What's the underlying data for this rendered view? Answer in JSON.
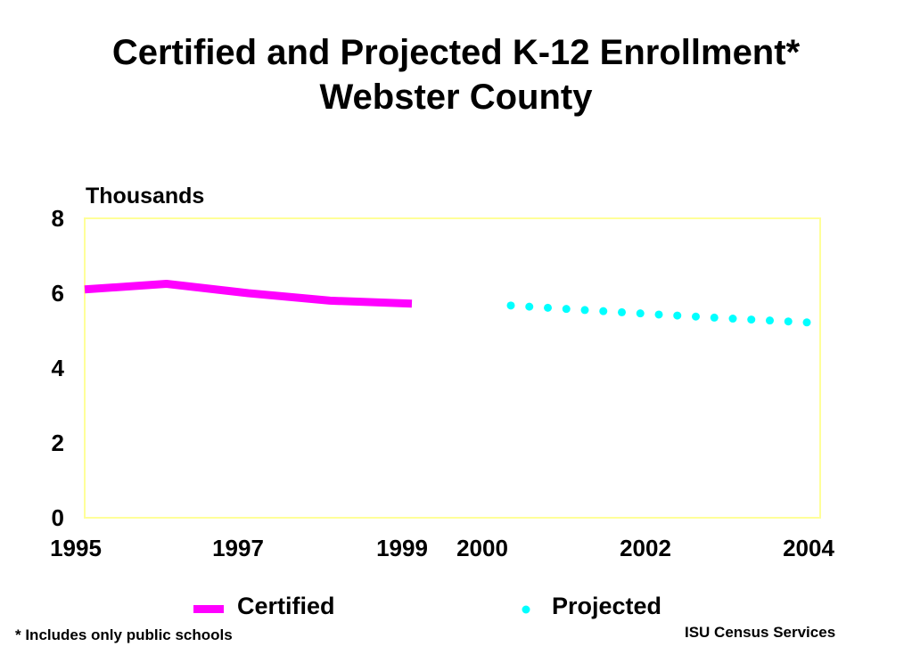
{
  "title": {
    "line1": "Certified and Projected K-12 Enrollment*",
    "line2": "Webster County"
  },
  "footnote": "* Includes only public schools",
  "credit": "ISU Census Services",
  "colors": {
    "certified": "#ff00ff",
    "projected": "#00ffff",
    "plot_border": "#ffff99"
  },
  "chart_data": {
    "type": "line",
    "ylabel": "Thousands",
    "ylim": [
      0,
      8
    ],
    "yticks": [
      0,
      2,
      4,
      6,
      8
    ],
    "xlim": [
      1995,
      2004
    ],
    "xtick_labels": [
      "1995",
      "1997",
      "1999",
      "2000",
      "2002",
      "2004"
    ],
    "grid": false,
    "legend_position": "bottom",
    "series": [
      {
        "name": "Certified",
        "style": "solid",
        "x": [
          1995,
          1996,
          1997,
          1998,
          1999
        ],
        "y": [
          6.1,
          6.25,
          6.0,
          5.8,
          5.72
        ]
      },
      {
        "name": "Projected",
        "style": "dotted",
        "x": [
          2000,
          2001,
          2002,
          2003,
          2004
        ],
        "y": [
          5.67,
          5.55,
          5.43,
          5.32,
          5.22
        ]
      }
    ]
  }
}
